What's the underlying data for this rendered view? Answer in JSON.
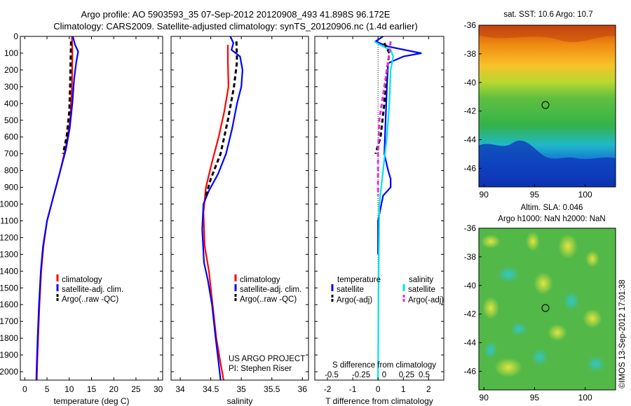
{
  "header": {
    "title_line1": "Argo profile: AO 5903593_35 07-Sep-2012 20120908_493 41.898S 96.172E",
    "title_line2": "Climatology: CARS2009. Satellite-adjusted climatology: synTS_20120906.nc (1.4d earlier)"
  },
  "colors": {
    "climatology": "#ff0000",
    "satellite": "#0000ff",
    "argo": "#000000",
    "sal_satellite": "#00e5e5",
    "sal_argo": "#e033e0"
  },
  "chart_data": [
    {
      "type": "line",
      "panel": "temperature",
      "xlabel": "temperature (deg C)",
      "ylabel": "",
      "xlim": [
        -1,
        31
      ],
      "ylim": [
        2050,
        0
      ],
      "xticks": [
        0,
        5,
        10,
        15,
        20,
        25,
        30
      ],
      "yticks": [
        0,
        100,
        200,
        300,
        400,
        500,
        600,
        700,
        800,
        900,
        1000,
        1100,
        1200,
        1300,
        1400,
        1500,
        1600,
        1700,
        1800,
        1900,
        2000
      ],
      "legend": [
        "climatology",
        "satellite-adj. clim.",
        "Argo(..raw -QC)"
      ],
      "series": [
        {
          "name": "climatology",
          "color": "#ff0000",
          "points": [
            [
              10.6,
              0
            ],
            [
              10.7,
              100
            ],
            [
              10.6,
              300
            ],
            [
              10.2,
              500
            ],
            [
              9.3,
              650
            ],
            [
              8.0,
              800
            ],
            [
              6.5,
              950
            ],
            [
              5.0,
              1100
            ],
            [
              4.2,
              1250
            ],
            [
              3.7,
              1400
            ],
            [
              3.3,
              1600
            ],
            [
              3.0,
              1800
            ],
            [
              2.8,
              1950
            ],
            [
              2.7,
              2050
            ]
          ]
        },
        {
          "name": "satellite-adj. clim.",
          "color": "#0000ff",
          "points": [
            [
              10.8,
              0
            ],
            [
              11.3,
              50
            ],
            [
              12.0,
              90
            ],
            [
              11.6,
              150
            ],
            [
              11.1,
              250
            ],
            [
              10.7,
              400
            ],
            [
              10.1,
              550
            ],
            [
              9.2,
              680
            ],
            [
              7.8,
              820
            ],
            [
              6.4,
              960
            ],
            [
              5.0,
              1100
            ],
            [
              4.1,
              1250
            ],
            [
              3.6,
              1400
            ],
            [
              3.2,
              1600
            ],
            [
              2.9,
              1800
            ],
            [
              2.7,
              1950
            ],
            [
              2.6,
              2050
            ]
          ]
        },
        {
          "name": "Argo(..raw -QC)",
          "color": "#000000",
          "points": [
            [
              10.4,
              30
            ],
            [
              10.3,
              150
            ],
            [
              10.2,
              300
            ],
            [
              10.0,
              450
            ],
            [
              9.4,
              600
            ],
            [
              8.6,
              700
            ]
          ]
        }
      ]
    },
    {
      "type": "line",
      "panel": "salinity",
      "xlabel": "salinity",
      "xlim": [
        33.85,
        36.1
      ],
      "ylim": [
        2050,
        0
      ],
      "xticks": [
        34,
        34.5,
        35,
        35.5,
        36
      ],
      "legend": [
        "climatology",
        "satellite-adj. clim.",
        "Argo(..raw -QC)"
      ],
      "annotation": [
        "US ARGO PROJECT",
        "PI: Stephen Riser"
      ],
      "series": [
        {
          "name": "climatology",
          "color": "#ff0000",
          "points": [
            [
              34.78,
              50
            ],
            [
              34.78,
              150
            ],
            [
              34.79,
              300
            ],
            [
              34.72,
              450
            ],
            [
              34.63,
              600
            ],
            [
              34.52,
              750
            ],
            [
              34.42,
              900
            ],
            [
              34.38,
              1050
            ],
            [
              34.4,
              1250
            ],
            [
              34.47,
              1400
            ],
            [
              34.53,
              1600
            ],
            [
              34.59,
              1800
            ],
            [
              34.66,
              1950
            ],
            [
              34.71,
              2050
            ]
          ]
        },
        {
          "name": "satellite-adj. clim.",
          "color": "#0000ff",
          "points": [
            [
              34.82,
              0
            ],
            [
              34.87,
              40
            ],
            [
              34.84,
              80
            ],
            [
              34.98,
              120
            ],
            [
              35.02,
              200
            ],
            [
              35.0,
              300
            ],
            [
              34.93,
              400
            ],
            [
              34.85,
              550
            ],
            [
              34.75,
              700
            ],
            [
              34.62,
              820
            ],
            [
              34.47,
              920
            ],
            [
              34.38,
              1000
            ],
            [
              34.36,
              1150
            ],
            [
              34.39,
              1350
            ],
            [
              34.45,
              1450
            ],
            [
              34.52,
              1600
            ],
            [
              34.58,
              1800
            ],
            [
              34.63,
              1950
            ],
            [
              34.66,
              2050
            ]
          ]
        },
        {
          "name": "Argo(..raw -QC)",
          "color": "#000000",
          "points": [
            [
              34.92,
              30
            ],
            [
              34.93,
              150
            ],
            [
              34.88,
              300
            ],
            [
              34.78,
              500
            ],
            [
              34.66,
              700
            ],
            [
              34.5,
              850
            ],
            [
              34.42,
              950
            ]
          ]
        }
      ]
    },
    {
      "type": "line",
      "panel": "difference",
      "xlabel": "T difference from climatology",
      "top_xlabel": "S difference from climatology",
      "xlim": [
        -2.5,
        2.6
      ],
      "ylim": [
        2050,
        0
      ],
      "xticks": [
        -2,
        -1,
        0,
        1,
        2
      ],
      "top_ticks": [
        "-0.5",
        "-0.25",
        "0",
        "0.25",
        "0.5"
      ],
      "legend_titles": [
        "temperature",
        "salinity"
      ],
      "legend": [
        "satellite",
        "Argo(-adj)",
        "satellite",
        "Argo(-adj)"
      ],
      "series": [
        {
          "name": "satellite",
          "group": "temperature",
          "color": "#0000ff",
          "points": [
            [
              0.2,
              0
            ],
            [
              -0.1,
              30
            ],
            [
              0.4,
              60
            ],
            [
              1.7,
              100
            ],
            [
              1.0,
              120
            ],
            [
              0.4,
              160
            ],
            [
              0.35,
              300
            ],
            [
              0.3,
              500
            ],
            [
              0.25,
              700
            ],
            [
              0.4,
              800
            ],
            [
              0.5,
              850
            ],
            [
              0.5,
              900
            ],
            [
              0.2,
              950
            ],
            [
              0.0,
              1100
            ],
            [
              0.0,
              1300
            ]
          ]
        },
        {
          "name": "satellite",
          "group": "salinity",
          "color": "#00e5e5",
          "points": [
            [
              -0.15,
              30
            ],
            [
              0.2,
              60
            ],
            [
              0.5,
              80
            ],
            [
              0.6,
              120
            ],
            [
              0.5,
              200
            ],
            [
              0.45,
              400
            ],
            [
              0.35,
              600
            ],
            [
              0.2,
              800
            ],
            [
              0.05,
              1000
            ],
            [
              0.02,
              1500
            ],
            [
              0.0,
              2050
            ]
          ]
        },
        {
          "name": "Argo(-adj)",
          "group": "temperature",
          "color": "#000000",
          "points": [
            [
              0.25,
              40
            ],
            [
              0.45,
              100
            ],
            [
              0.35,
              200
            ],
            [
              0.25,
              400
            ],
            [
              0.1,
              600
            ],
            [
              -0.1,
              700
            ]
          ]
        },
        {
          "name": "Argo(-adj)",
          "group": "salinity",
          "color": "#e033e0",
          "points": [
            [
              0.5,
              30
            ],
            [
              0.45,
              100
            ],
            [
              0.3,
              250
            ],
            [
              0.05,
              500
            ],
            [
              0.0,
              700
            ],
            [
              0.0,
              950
            ]
          ]
        }
      ]
    },
    {
      "type": "heatmap",
      "panel": "sst_map",
      "title": "sat. SST: 10.6 Argo: 10.7",
      "xlim": [
        89.5,
        103
      ],
      "ylim": [
        -47.3,
        -36
      ],
      "xticks": [
        90,
        95,
        100
      ],
      "yticks": [
        -36,
        -38,
        -40,
        -42,
        -44,
        -46
      ],
      "marker": [
        96.17,
        -41.9
      ]
    },
    {
      "type": "heatmap",
      "panel": "sla_map",
      "title": "Altim. SLA: 0.046",
      "subtitle": "Argo h1000: NaN h2000: NaN",
      "xlim": [
        89.5,
        103
      ],
      "ylim": [
        -47.3,
        -36
      ],
      "xticks": [
        90,
        95,
        100
      ],
      "yticks": [
        -36,
        -38,
        -40,
        -42,
        -44,
        -46
      ],
      "marker": [
        96.17,
        -41.9
      ]
    }
  ],
  "footer": {
    "credit": "©IMOS 13-Sep-2012 17:01:38"
  }
}
